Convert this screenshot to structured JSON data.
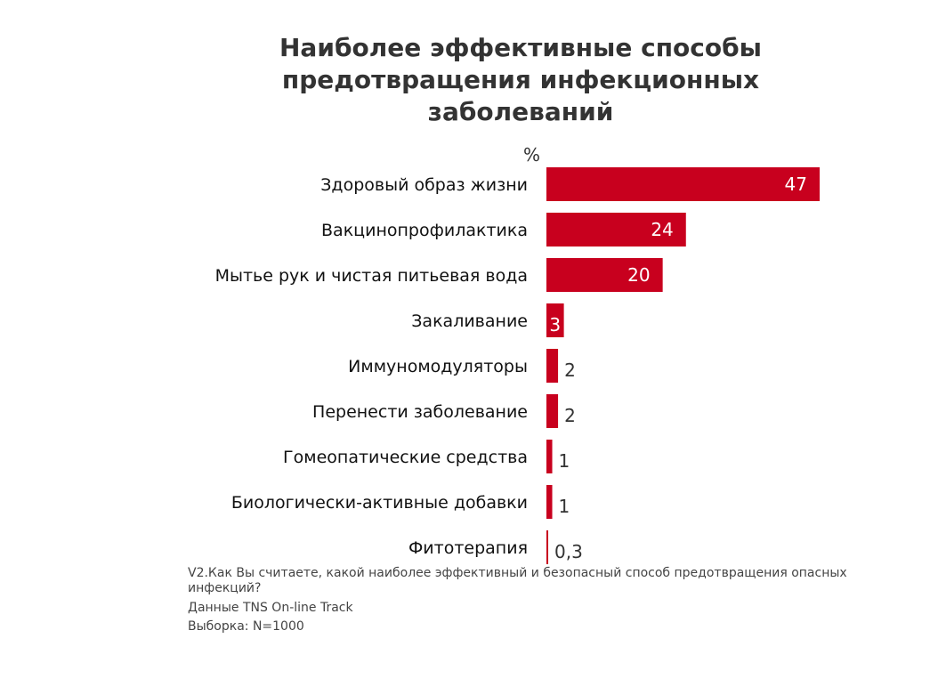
{
  "chart_data": {
    "type": "bar",
    "orientation": "horizontal",
    "title": "Наиболее эффективные способы предотвращения инфекционных заболеваний",
    "unit_label": "%",
    "categories": [
      "Здоровый образ жизни",
      "Вакцинопрофилактика",
      "Мытье рук и чистая питьевая вода",
      "Закаливание",
      "Иммуномодуляторы",
      "Перенести заболевание",
      "Гомеопатические средства",
      "Биологически-активные добавки",
      "Фитотерапия"
    ],
    "values": [
      47,
      24,
      20,
      3,
      2,
      2,
      1,
      1,
      0.3
    ],
    "value_labels": [
      "47",
      "24",
      "20",
      "3",
      "2",
      "2",
      "1",
      "1",
      "0,3"
    ],
    "bar_color": "#c8001e",
    "grid": false,
    "legend": "none"
  },
  "notes": {
    "question": "V2.Как Вы считаете, какой наиболее эффективный и безопасный способ предотвращения опасных инфекций?",
    "source": "Данные TNS On-line Track",
    "sample": "Выборка: N=1000"
  }
}
